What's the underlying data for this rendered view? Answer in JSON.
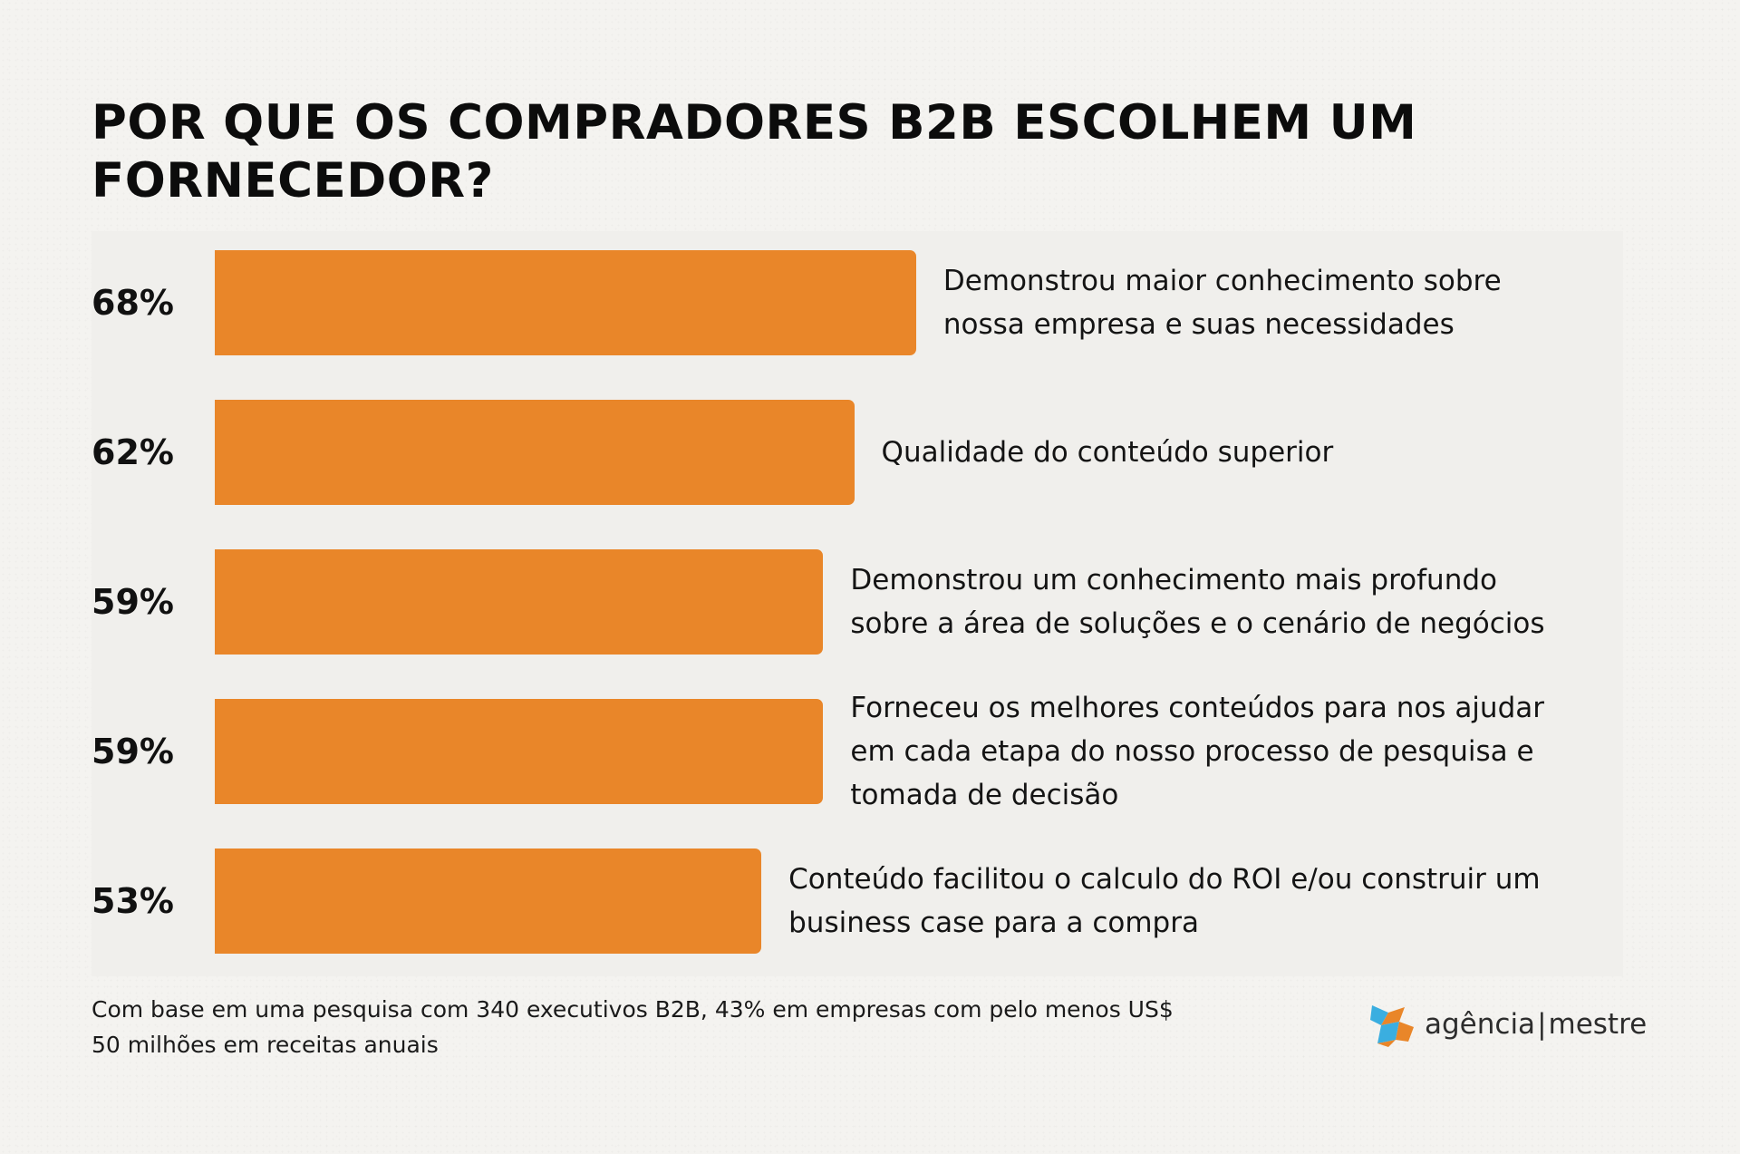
{
  "title": "POR QUE OS COMPRADORES B2B ESCOLHEM UM\nFORNECEDOR?",
  "colors": {
    "bar": "#e98629",
    "logo_blue": "#3aaee0",
    "logo_orange": "#e98629"
  },
  "chart_data": {
    "type": "bar",
    "orientation": "horizontal",
    "title": "POR QUE OS COMPRADORES B2B ESCOLHEM UM\nFORNECEDOR?",
    "xlim": [
      0,
      100
    ],
    "grid": false,
    "bars": [
      {
        "label": "68%",
        "value": 68,
        "description": "Demonstrou maior conhecimento sobre\nnossa empresa e suas necessidades"
      },
      {
        "label": "62%",
        "value": 62,
        "description": "Qualidade do conteúdo superior"
      },
      {
        "label": "59%",
        "value": 59,
        "description": "Demonstrou um conhecimento mais profundo\nsobre a área de soluções e o cenário de negócios"
      },
      {
        "label": "59%",
        "value": 59,
        "description": "Forneceu os melhores conteúdos para nos ajudar\nem cada etapa do nosso processo de pesquisa e\ntomada de decisão"
      },
      {
        "label": "53%",
        "value": 53,
        "description": "Conteúdo facilitou o calculo do ROI e/ou construir um\nbusiness case para a compra"
      }
    ]
  },
  "footnote": "Com base em uma pesquisa com 340 executivos B2B, 43% em empresas com pelo menos US$\n50 milhões em receitas anuais",
  "logo": {
    "left_text": "agência",
    "separator": "|",
    "right_text": "mestre",
    "icon": "puzzle-logo-icon"
  }
}
